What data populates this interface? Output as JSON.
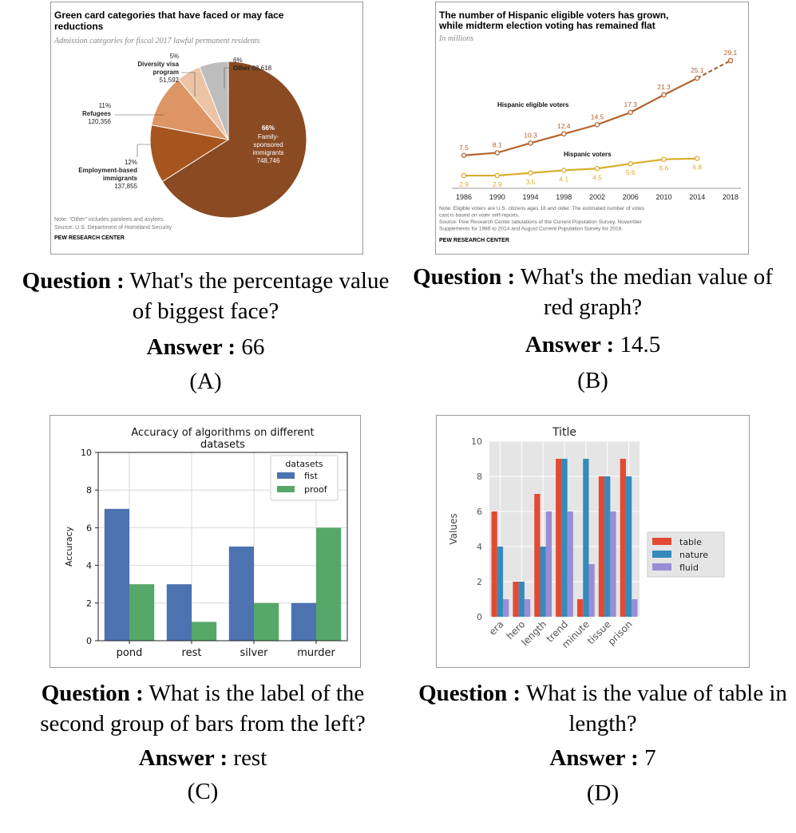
{
  "panels": [
    {
      "label": "(A)",
      "question_prefix": "Question :",
      "question_text": " What's the percentage value of biggest face?",
      "answer_prefix": "Answer :",
      "answer_text": " 66"
    },
    {
      "label": "(B)",
      "question_prefix": "Question :",
      "question_text": " What's the median value of red graph?",
      "answer_prefix": "Answer :",
      "answer_text": " 14.5"
    },
    {
      "label": "(C)",
      "question_prefix": "Question :",
      "question_text": " What is the label of the second group of bars from the left?",
      "answer_prefix": "Answer :",
      "answer_text": " rest"
    },
    {
      "label": "(D)",
      "question_prefix": "Question :",
      "question_text": " What is the value of table in length?",
      "answer_prefix": "Answer :",
      "answer_text": " 7"
    }
  ],
  "chart_data": [
    {
      "type": "pie",
      "title": "Green card categories that have faced or may face reductions",
      "subtitle": "Admission categories for fiscal 2017 lawful permanent residents",
      "slices": [
        {
          "pct": "66%",
          "value": 66,
          "name": "Family-sponsored immigrants",
          "count": "748,746",
          "color": "#8a4a22"
        },
        {
          "pct": "12%",
          "value": 12,
          "name": "Employment-based immigrants",
          "count": "137,855",
          "color": "#a6551f"
        },
        {
          "pct": "11%",
          "value": 11,
          "name": "Refugees",
          "count": "120,356",
          "color": "#dd9565"
        },
        {
          "pct": "5%",
          "value": 5,
          "name": "Diversity visa program",
          "count": "51,592",
          "color": "#ecc4a5"
        },
        {
          "pct": "6%",
          "value": 6,
          "name": "Other",
          "count": "68,618",
          "color": "#bdbdbd"
        }
      ],
      "note": "Note: “Other” includes parolees and asylees.",
      "source": "Source: U.S. Department of Homeland Security",
      "brand": "PEW RESEARCH CENTER"
    },
    {
      "type": "line",
      "title_line1": "The number of Hispanic eligible voters has grown,",
      "title_line2": "while midterm election voting has remained flat",
      "subtitle": "In millions",
      "x": [
        1986,
        1990,
        1994,
        1998,
        2002,
        2006,
        2010,
        2014,
        2018
      ],
      "xlim": [
        1986,
        2018
      ],
      "ylim": [
        0,
        30
      ],
      "series": [
        {
          "name": "Hispanic eligible voters",
          "color": "#b5622c",
          "x": [
            1986,
            1990,
            1994,
            1998,
            2002,
            2006,
            2010,
            2014,
            2018
          ],
          "values": [
            7.5,
            8.1,
            10.3,
            12.4,
            14.5,
            17.3,
            21.3,
            25.1,
            29.1
          ],
          "labels": [
            "7.5",
            "8.1",
            "10.3",
            "12.4",
            "14.5",
            "17.3",
            "21.3",
            "25.1",
            "29.1"
          ]
        },
        {
          "name": "Hispanic voters",
          "color": "#d9ad2b",
          "x": [
            1986,
            1990,
            1994,
            1998,
            2002,
            2006,
            2010,
            2014
          ],
          "values": [
            2.9,
            2.9,
            3.5,
            4.1,
            4.5,
            5.6,
            6.6,
            6.8
          ],
          "labels": [
            "2.9",
            "2.9",
            "3.5",
            "4.1",
            "4.5",
            "5.6",
            "6.6",
            "6.8"
          ]
        }
      ],
      "note_lines": [
        "Note: Eligible voters are U.S. citizens ages 18 and older. The estimated number of votes",
        "cast is based on voter self-reports.",
        "Source: Pew Research Center tabulations of the Current Population Survey, November",
        "Supplements for 1986 to 2014 and August Current Population Survey for 2018."
      ],
      "brand": "PEW RESEARCH CENTER"
    },
    {
      "type": "bar",
      "title_line1": "Accuracy of algorithms on different",
      "title_line2": "datasets",
      "ylabel": "Accuracy",
      "ylim": [
        0,
        10
      ],
      "yticks": [
        "0",
        "2",
        "4",
        "6",
        "8",
        "10"
      ],
      "categories": [
        "pond",
        "rest",
        "silver",
        "murder"
      ],
      "legend_title": "datasets",
      "legend_position": "top-right",
      "series": [
        {
          "name": "fist",
          "color": "#4c72b0",
          "values": [
            7,
            3,
            5,
            2
          ]
        },
        {
          "name": "proof",
          "color": "#55a868",
          "values": [
            3,
            1,
            2,
            6
          ]
        }
      ]
    },
    {
      "type": "bar",
      "title": "Title",
      "ylabel": "Values",
      "ylim": [
        0,
        10
      ],
      "yticks": [
        "0",
        "2",
        "4",
        "6",
        "8",
        "10"
      ],
      "categories": [
        "era",
        "hero",
        "length",
        "trend",
        "minute",
        "tissue",
        "prison"
      ],
      "legend_position": "right",
      "series": [
        {
          "name": "table",
          "color": "#e24a33",
          "values": [
            6,
            2,
            7,
            9,
            1,
            8,
            9
          ]
        },
        {
          "name": "nature",
          "color": "#348abd",
          "values": [
            4,
            2,
            4,
            9,
            9,
            8,
            8
          ]
        },
        {
          "name": "fluid",
          "color": "#988ed5",
          "values": [
            1,
            1,
            6,
            6,
            3,
            6,
            1
          ]
        }
      ]
    }
  ]
}
